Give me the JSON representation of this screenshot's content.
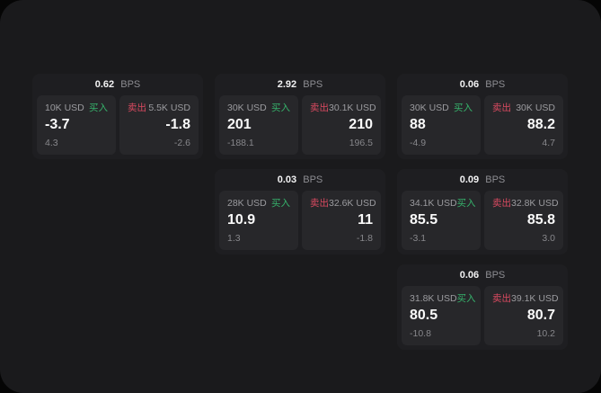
{
  "labels": {
    "bps_unit": "BPS",
    "buy": "买入",
    "sell": "卖出"
  },
  "colors": {
    "buy": "#36b26b",
    "sell": "#d94a60",
    "page_bg": "#1a1a1c",
    "card_bg": "#1e1e21",
    "panel_bg": "#27272a"
  },
  "cards": [
    {
      "row": 1,
      "col": 1,
      "bps": "0.62",
      "buy": {
        "size": "10K USD",
        "price": "-3.7",
        "delta": "4.3"
      },
      "sell": {
        "size": "5.5K USD",
        "price": "-1.8",
        "delta": "-2.6"
      }
    },
    {
      "row": 1,
      "col": 2,
      "bps": "2.92",
      "buy": {
        "size": "30K USD",
        "price": "201",
        "delta": "-188.1"
      },
      "sell": {
        "size": "30.1K USD",
        "price": "210",
        "delta": "196.5"
      }
    },
    {
      "row": 1,
      "col": 3,
      "bps": "0.06",
      "buy": {
        "size": "30K USD",
        "price": "88",
        "delta": "-4.9"
      },
      "sell": {
        "size": "30K USD",
        "price": "88.2",
        "delta": "4.7"
      }
    },
    {
      "row": 2,
      "col": 2,
      "bps": "0.03",
      "buy": {
        "size": "28K USD",
        "price": "10.9",
        "delta": "1.3"
      },
      "sell": {
        "size": "32.6K USD",
        "price": "11",
        "delta": "-1.8"
      }
    },
    {
      "row": 2,
      "col": 3,
      "bps": "0.09",
      "buy": {
        "size": "34.1K USD",
        "price": "85.5",
        "delta": "-3.1"
      },
      "sell": {
        "size": "32.8K USD",
        "price": "85.8",
        "delta": "3.0"
      }
    },
    {
      "row": 3,
      "col": 3,
      "bps": "0.06",
      "buy": {
        "size": "31.8K USD",
        "price": "80.5",
        "delta": "-10.8"
      },
      "sell": {
        "size": "39.1K USD",
        "price": "80.7",
        "delta": "10.2"
      }
    }
  ]
}
